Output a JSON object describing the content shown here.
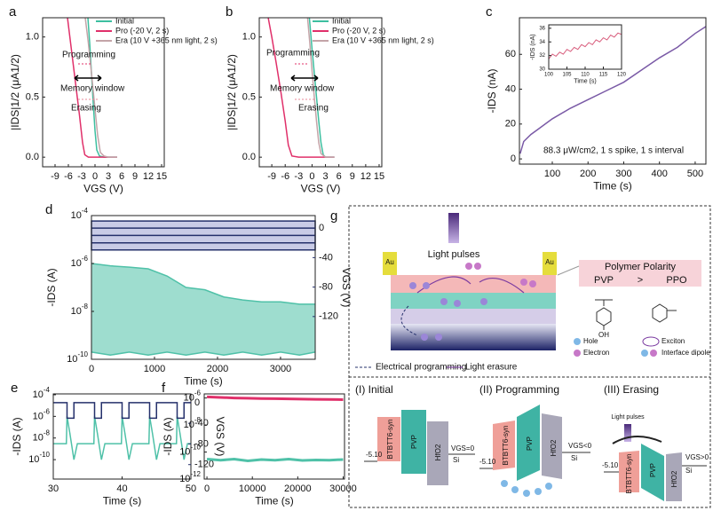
{
  "chart_data": [
    {
      "type": "line",
      "label": "a",
      "xlabel": "VGS (V)",
      "ylabel": "|IDS|1/2 (μA1/2)",
      "xlim": [
        -11.8,
        15.6
      ],
      "xticks": [
        -9,
        -6,
        -3,
        0,
        3,
        6,
        9,
        12,
        15
      ],
      "ylim": [
        -0.08,
        1.16
      ],
      "yticks": [
        {
          "value": 0,
          "label": "0.0"
        },
        0.5,
        {
          "value": 1,
          "label": "1.0"
        }
      ],
      "legend": true,
      "series": [
        {
          "name": "Initial",
          "color": "#3dbfa0",
          "x": [
            -1.6,
            -1.2,
            -0.8,
            -0.4,
            0,
            0.4,
            1,
            2,
            3,
            4,
            5
          ],
          "values": [
            1.16,
            0.95,
            0.7,
            0.45,
            0.22,
            0.06,
            0.01,
            0,
            0,
            0,
            0
          ]
        },
        {
          "name": "Pro (-20 V, 2 s)",
          "color": "#e0306a",
          "x": [
            -6.2,
            -5.5,
            -4.5,
            -3.5,
            -2.8,
            -2.3,
            -1.5,
            0,
            2,
            4,
            5
          ],
          "values": [
            1.16,
            0.95,
            0.65,
            0.35,
            0.12,
            0.02,
            0,
            0,
            0,
            0,
            0
          ]
        },
        {
          "name": "Era (10 V +365 nm light, 2 s)",
          "color": "#c4a4a8",
          "x": [
            -2.2,
            -1.5,
            -0.8,
            0,
            0.6,
            1.2,
            2,
            3,
            5
          ],
          "values": [
            1.16,
            0.95,
            0.7,
            0.4,
            0.18,
            0.04,
            0.01,
            0,
            0
          ]
        }
      ],
      "annotations": [
        {
          "text": "Programming",
          "color": "#e0306a"
        },
        {
          "text": "Memory window",
          "color": "#000000"
        },
        {
          "text": "Erasing",
          "color": "#e88a9a"
        }
      ]
    },
    {
      "type": "line",
      "label": "b",
      "xlabel": "VGS (V)",
      "ylabel": "|IDS|1/2 (μA1/2)",
      "xlim": [
        -11.8,
        15.6
      ],
      "xticks": [
        -9,
        -6,
        -3,
        0,
        3,
        6,
        9,
        12,
        15
      ],
      "ylim": [
        -0.08,
        1.16
      ],
      "yticks": [
        {
          "value": 0,
          "label": "0.0"
        },
        0.5,
        {
          "value": 1,
          "label": "1.0"
        }
      ],
      "legend": true,
      "series": [
        {
          "name": "Initial",
          "color": "#3dbfa0",
          "x": [
            -0.6,
            0,
            0.5,
            1,
            1.5,
            2,
            2.5,
            3,
            5
          ],
          "values": [
            1.16,
            0.9,
            0.7,
            0.5,
            0.3,
            0.12,
            0.02,
            0,
            0
          ]
        },
        {
          "name": "Pro (-20 V, 2 s)",
          "color": "#e0306a",
          "x": [
            -9.8,
            -9,
            -8,
            -7,
            -6,
            -5.3,
            -4.5,
            -3,
            0,
            3,
            5
          ],
          "values": [
            1.16,
            1.0,
            0.78,
            0.55,
            0.3,
            0.1,
            0.01,
            0,
            0,
            0,
            0
          ]
        },
        {
          "name": "Era (10 V +365 nm light, 2 s)",
          "color": "#c4a4a8",
          "x": [
            -1,
            -0.5,
            0,
            0.5,
            1,
            1.5,
            2,
            3,
            5
          ],
          "values": [
            1.16,
            0.95,
            0.72,
            0.5,
            0.3,
            0.12,
            0.03,
            0,
            0
          ]
        }
      ],
      "annotations": [
        {
          "text": "Programming",
          "color": "#e0306a"
        },
        {
          "text": "Memory window",
          "color": "#000000"
        },
        {
          "text": "Erasing",
          "color": "#e88a9a"
        }
      ]
    },
    {
      "type": "line",
      "label": "c",
      "xlabel": "Time (s)",
      "ylabel": "-IDS (nA)",
      "xlim": [
        8,
        530
      ],
      "xticks": [
        100,
        200,
        300,
        400,
        500
      ],
      "ylim": [
        -3,
        81
      ],
      "yticks": [
        0,
        20,
        40,
        60
      ],
      "series": [
        {
          "color": "#7a5aa6",
          "x": [
            10,
            20,
            40,
            60,
            100,
            150,
            200,
            250,
            300,
            350,
            400,
            450,
            500,
            530
          ],
          "values": [
            3,
            10,
            14,
            17,
            23,
            29,
            34,
            39,
            44,
            51,
            58,
            64,
            72,
            76
          ]
        }
      ],
      "annotations": [
        {
          "text": "88.3 μW/cm2, 1 s spike, 1 s interval",
          "color": "#000000"
        }
      ],
      "inset": {
        "type": "line",
        "xlabel": "Time (s)",
        "ylabel": "-IDS (nA)",
        "xlim": [
          100,
          120
        ],
        "xticks": [
          100,
          105,
          110,
          115,
          120
        ],
        "ylim": [
          30,
          36.5
        ],
        "yticks": [
          30,
          32,
          34,
          36
        ],
        "series": [
          {
            "color": "#d9607f",
            "x": [
              100,
              101,
              102,
              103,
              104,
              105,
              106,
              107,
              108,
              109,
              110,
              111,
              112,
              113,
              114,
              115,
              116,
              117,
              118,
              119,
              120
            ],
            "values": [
              31.5,
              32.2,
              31.9,
              32.5,
              32.2,
              32.9,
              32.6,
              33.2,
              32.9,
              33.6,
              33.3,
              33.9,
              33.6,
              34.3,
              34.0,
              34.6,
              34.3,
              35.0,
              34.7,
              35.3,
              35.1
            ]
          }
        ]
      }
    },
    {
      "type": "line",
      "label": "d",
      "xlabel": "Time (s)",
      "ylabel": "-IDS (A)",
      "y2label": "VGS (V)",
      "log_y": true,
      "fill_between": true,
      "xlim": [
        0,
        3550
      ],
      "xticks": [
        0,
        1000,
        2000,
        3000
      ],
      "ylim": [
        1e-10,
        0.0001
      ],
      "yticks": [
        {
          "value": 0.0001,
          "label": "10-4"
        },
        {
          "value": 1e-06,
          "label": "10-6"
        },
        {
          "value": 1e-08,
          "label": "10-8"
        },
        {
          "value": 1e-10,
          "label": "10-10"
        }
      ],
      "y2lim": [
        -178,
        17
      ],
      "y2ticks": [
        0,
        -40,
        -80,
        -120
      ],
      "series": [
        {
          "color": "#4fc1a8",
          "x": [
            0,
            300,
            600,
            900,
            1200,
            1500,
            1800,
            2100,
            2400,
            2700,
            3000,
            3300,
            3550
          ],
          "values": [
            1e-06,
            8e-07,
            7e-07,
            6e-07,
            3e-07,
            1e-07,
            8e-08,
            4e-08,
            3e-08,
            2.5e-08,
            2.5e-08,
            2e-08,
            2e-08
          ]
        },
        {
          "color": "#4fc1a8",
          "x": [
            0,
            300,
            600,
            900,
            1200,
            1500,
            1800,
            2100,
            2400,
            2700,
            3000,
            3300,
            3550
          ],
          "values": [
            2e-10,
            1.5e-10,
            2e-10,
            1.5e-10,
            2e-10,
            1.5e-10,
            2e-10,
            1.5e-10,
            2e-10,
            1.5e-10,
            2e-10,
            1.5e-10,
            2e-10
          ]
        },
        {
          "color": "#25306b",
          "axis": "y2",
          "style": "band",
          "x": [
            0,
            3550
          ],
          "values": [
            0,
            -20
          ]
        }
      ]
    },
    {
      "type": "line",
      "label": "e",
      "xlabel": "Time (s)",
      "ylabel": "-IDS (A)",
      "y2label": "VGS (V)",
      "log_y": true,
      "xlim": [
        30,
        50
      ],
      "xticks": [
        30,
        40,
        50
      ],
      "ylim": [
        1.6e-12,
        0.00012
      ],
      "yticks": [
        {
          "value": 0.0001,
          "label": "10-4"
        },
        {
          "value": 1e-06,
          "label": "10-6"
        },
        {
          "value": 1e-08,
          "label": "10-8"
        },
        {
          "value": 1e-10,
          "label": "10-10"
        }
      ],
      "y2lim": [
        -148,
        17
      ],
      "y2ticks": [
        0,
        -40,
        -80,
        -120
      ],
      "series": [
        {
          "color": "#4fc1a8",
          "x": [
            30,
            31.9,
            32,
            32.4,
            33,
            33.5,
            35.9,
            36,
            36.4,
            37,
            37.5,
            39.9,
            40,
            40.4,
            41,
            41.5,
            43.9,
            44,
            44.4,
            45,
            45.5,
            47.9,
            48,
            48.4,
            49,
            49.5,
            50
          ],
          "values": [
            3e-09,
            3e-09,
            1e-06,
            3e-08,
            1e-10,
            3e-09,
            3e-09,
            1e-06,
            3e-08,
            1e-10,
            3e-09,
            3e-09,
            1e-06,
            3e-08,
            1e-10,
            3e-09,
            3e-09,
            1e-06,
            3e-08,
            1e-10,
            3e-09,
            3e-09,
            1e-06,
            3e-08,
            1e-10,
            3e-09,
            3e-09
          ]
        },
        {
          "color": "#25306b",
          "axis": "y2",
          "x": [
            30,
            32,
            32,
            33,
            33,
            36,
            36,
            37,
            37,
            40,
            40,
            41,
            41,
            44,
            44,
            45,
            45,
            48,
            48,
            49,
            49,
            50
          ],
          "values": [
            0,
            0,
            -30,
            -30,
            0,
            0,
            -30,
            -30,
            0,
            0,
            -30,
            -30,
            0,
            0,
            -30,
            -30,
            0,
            0,
            -30,
            -30,
            0,
            0
          ]
        }
      ]
    },
    {
      "type": "line",
      "label": "f",
      "xlabel": "Time (s)",
      "ylabel": "-IDS (A)",
      "log_y": true,
      "xlim": [
        -600,
        30300
      ],
      "xticks": [
        0,
        10000,
        20000,
        30000
      ],
      "ylim": [
        1e-12,
        2e-06
      ],
      "yticks": [
        {
          "value": 1e-06,
          "label": "10-6"
        },
        {
          "value": 1e-08,
          "label": "10-8"
        },
        {
          "value": 1e-10,
          "label": "10-10"
        },
        {
          "value": 1e-12,
          "label": "10-12"
        }
      ],
      "series": [
        {
          "color": "#e0306a",
          "x": [
            0,
            3000,
            6000,
            9000,
            12000,
            15000,
            18000,
            21000,
            24000,
            27000,
            30000
          ],
          "values": [
            1.2e-06,
            1.1e-06,
            1e-06,
            9.5e-07,
            9e-07,
            8.8e-07,
            8.5e-07,
            8.2e-07,
            8e-07,
            7.8e-07,
            7.5e-07
          ]
        },
        {
          "color": "#4fc1a8",
          "x": [
            0,
            3000,
            6000,
            9000,
            12000,
            15000,
            18000,
            21000,
            24000,
            27000,
            30000
          ],
          "values": [
            3e-11,
            2.5e-11,
            3e-11,
            2.2e-11,
            2.8e-11,
            2.5e-11,
            3e-11,
            2.4e-11,
            2.6e-11,
            2.5e-11,
            2.8e-11
          ]
        }
      ]
    }
  ],
  "diagram": {
    "label": "g",
    "light_pulses": "Light pulses",
    "electrode": "Au",
    "polarity": {
      "title": "Polymer Polarity",
      "left": "PVP",
      "relation": ">",
      "right": "PPO"
    },
    "oh": "OH",
    "legend": [
      "Hole",
      "Electron",
      "Exciton",
      "Interface dipole"
    ],
    "arrows": [
      "Electrical programming",
      "Light erasure"
    ],
    "panels": [
      {
        "title": "(I) Initial",
        "bias": "VGS=0"
      },
      {
        "title": "(II) Programming",
        "bias": "VGS<0"
      },
      {
        "title": "(III) Erasing",
        "bias": "VGS>0",
        "light": "Light pulses"
      }
    ],
    "layers": [
      "BTBTT6-syn",
      "PVP",
      "HfO2",
      "Si"
    ],
    "level": "-5.10"
  }
}
